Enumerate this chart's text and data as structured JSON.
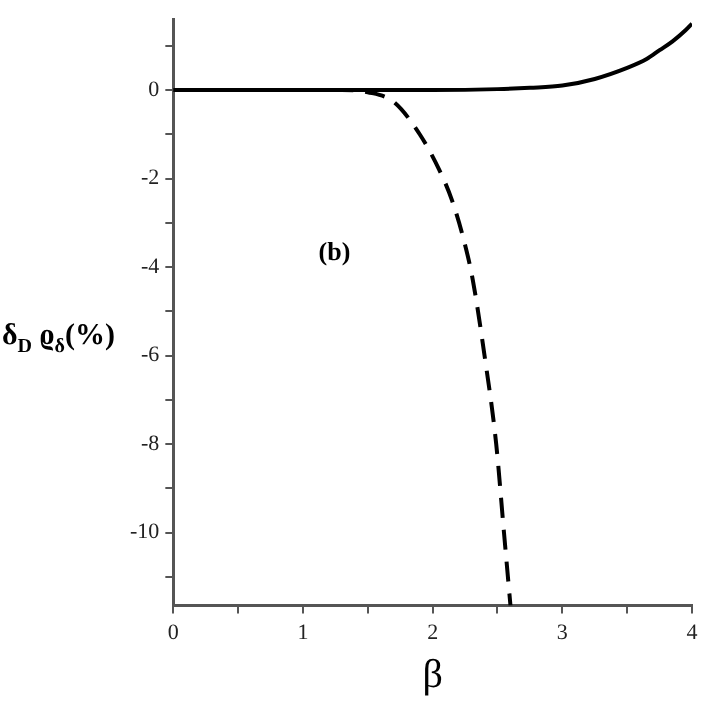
{
  "chart_data": {
    "type": "line",
    "xlabel": "β",
    "ylabel": "δ$_{D}$ ϱ$_{δ}$(%)",
    "annotations": [
      "(b)"
    ],
    "xlim": [
      0,
      4
    ],
    "ylim": [
      -11.65,
      1.6
    ],
    "xticks": [
      0,
      {
        "value": 0.5,
        "label": null
      },
      1,
      {
        "value": 1.5,
        "label": null
      },
      2,
      {
        "value": 2.5,
        "label": null
      },
      3,
      {
        "value": 3.5,
        "label": null
      },
      4
    ],
    "yticks": [
      {
        "value": -11,
        "label": null
      },
      -10,
      {
        "value": -9,
        "label": null
      },
      -8,
      {
        "value": -7,
        "label": null
      },
      -6,
      {
        "value": -5,
        "label": null
      },
      -4,
      {
        "value": -3,
        "label": null
      },
      -2,
      {
        "value": -1,
        "label": null
      },
      0,
      {
        "value": 1,
        "label": null
      }
    ],
    "grid": false,
    "legend": false,
    "marker": "none",
    "series": [
      {
        "color": "#000000",
        "line_style": "solid",
        "x": [
          0,
          0.5,
          1,
          1.5,
          2,
          2.5,
          2.75,
          3,
          3.25,
          3.5,
          3.65,
          3.75,
          3.85,
          3.95,
          4
        ],
        "values": [
          0,
          0,
          0,
          0,
          0,
          0.02,
          0.05,
          0.1,
          0.25,
          0.5,
          0.7,
          0.9,
          1.1,
          1.35,
          1.5
        ]
      },
      {
        "color": "#000000",
        "line_style": "dashed",
        "x": [
          0,
          0.5,
          1,
          1.3,
          1.5,
          1.7,
          1.9,
          2.05,
          2.15,
          2.25,
          2.31,
          2.4,
          2.49,
          2.55,
          2.6
        ],
        "values": [
          0,
          0,
          0,
          0,
          -0.05,
          -0.27,
          -1,
          -1.8,
          -2.5,
          -3.5,
          -4.3,
          -6,
          -8,
          -10,
          -11.65
        ]
      }
    ]
  }
}
